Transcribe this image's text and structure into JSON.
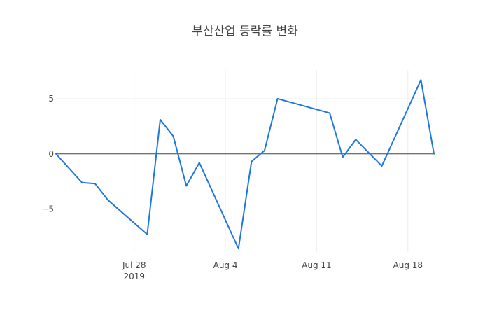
{
  "chart_data": {
    "type": "line",
    "title": "부산산업 등락률 변화",
    "xlabel": "",
    "ylabel": "",
    "x_range": [
      "2019-07-22",
      "2019-08-20"
    ],
    "ylim": [
      -8.9,
      7.6
    ],
    "grid": true,
    "legend": "none",
    "series": [
      {
        "color": "#1f77e0",
        "points": [
          {
            "x": "2019-07-22",
            "y": 0
          },
          {
            "x": "2019-07-24",
            "y": -2.6
          },
          {
            "x": "2019-07-25",
            "y": -2.7
          },
          {
            "x": "2019-07-26",
            "y": -4.2
          },
          {
            "x": "2019-07-29",
            "y": -7.3
          },
          {
            "x": "2019-07-30",
            "y": 3.1
          },
          {
            "x": "2019-07-31",
            "y": 1.6
          },
          {
            "x": "2019-08-01",
            "y": -2.9
          },
          {
            "x": "2019-08-02",
            "y": -0.8
          },
          {
            "x": "2019-08-05",
            "y": -8.6
          },
          {
            "x": "2019-08-06",
            "y": -0.7
          },
          {
            "x": "2019-08-07",
            "y": 0.3
          },
          {
            "x": "2019-08-08",
            "y": 5.0
          },
          {
            "x": "2019-08-12",
            "y": 3.7
          },
          {
            "x": "2019-08-13",
            "y": -0.3
          },
          {
            "x": "2019-08-14",
            "y": 1.3
          },
          {
            "x": "2019-08-16",
            "y": -1.1
          },
          {
            "x": "2019-08-19",
            "y": 6.7
          },
          {
            "x": "2019-08-20",
            "y": 0
          }
        ]
      }
    ],
    "x_ticks": [
      {
        "value": "2019-07-28",
        "label": "Jul 28",
        "sublabel": "2019"
      },
      {
        "value": "2019-08-04",
        "label": "Aug 4",
        "sublabel": ""
      },
      {
        "value": "2019-08-11",
        "label": "Aug 11",
        "sublabel": ""
      },
      {
        "value": "2019-08-18",
        "label": "Aug 18",
        "sublabel": ""
      }
    ],
    "y_ticks": [
      {
        "value": 5,
        "label": "5"
      },
      {
        "value": 0,
        "label": "0"
      },
      {
        "value": -5,
        "label": "−5"
      }
    ]
  }
}
